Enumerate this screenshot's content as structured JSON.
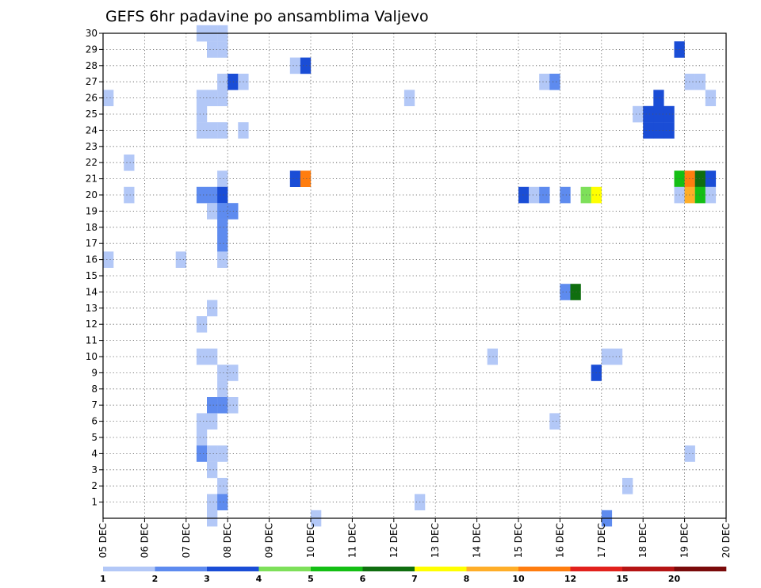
{
  "chart_data": {
    "type": "heatmap",
    "title": "GEFS 6hr padavine po ansamblima Valjevo",
    "xlabel": "",
    "ylabel": "",
    "x_ticks": [
      "05 DEC",
      "06 DEC",
      "07 DEC",
      "08 DEC",
      "09 DEC",
      "10 DEC",
      "11 DEC",
      "12 DEC",
      "13 DEC",
      "14 DEC",
      "15 DEC",
      "16 DEC",
      "17 DEC",
      "18 DEC",
      "19 DEC",
      "20 DEC"
    ],
    "y_ticks": [
      "1",
      "2",
      "3",
      "4",
      "5",
      "6",
      "7",
      "8",
      "9",
      "10",
      "11",
      "12",
      "13",
      "14",
      "15",
      "16",
      "17",
      "18",
      "19",
      "20",
      "21",
      "22",
      "23",
      "24",
      "25",
      "26",
      "27",
      "28",
      "29",
      "30"
    ],
    "x_range_steps": [
      0,
      60
    ],
    "y_range": [
      0,
      30
    ],
    "grid": true,
    "colorbar": {
      "labels": [
        "1",
        "2",
        "3",
        "4",
        "5",
        "6",
        "7",
        "8",
        "10",
        "12",
        "15",
        "20"
      ],
      "colors": [
        "#b3c8f7",
        "#5e8bef",
        "#1a4dd6",
        "#7ee05a",
        "#14bf14",
        "#0f6e0f",
        "#ffff00",
        "#ffae28",
        "#ff7d0f",
        "#e2211c",
        "#b51414",
        "#7a0a0a"
      ]
    },
    "cells": [
      [
        9,
        30,
        1
      ],
      [
        10,
        30,
        1
      ],
      [
        11,
        30,
        1
      ],
      [
        10,
        29,
        1
      ],
      [
        11,
        29,
        1
      ],
      [
        55,
        29,
        3
      ],
      [
        18,
        28,
        1
      ],
      [
        19,
        28,
        3
      ],
      [
        11,
        27,
        1
      ],
      [
        12,
        27,
        3
      ],
      [
        13,
        27,
        1
      ],
      [
        42,
        27,
        1
      ],
      [
        43,
        27,
        2
      ],
      [
        56,
        27,
        1
      ],
      [
        57,
        27,
        1
      ],
      [
        0,
        26,
        1
      ],
      [
        9,
        26,
        1
      ],
      [
        10,
        26,
        1
      ],
      [
        11,
        26,
        1
      ],
      [
        29,
        26,
        1
      ],
      [
        53,
        26,
        3
      ],
      [
        58,
        26,
        1
      ],
      [
        9,
        25,
        1
      ],
      [
        51,
        25,
        1
      ],
      [
        52,
        25,
        3
      ],
      [
        53,
        25,
        3
      ],
      [
        54,
        25,
        3
      ],
      [
        9,
        24,
        1
      ],
      [
        10,
        24,
        1
      ],
      [
        11,
        24,
        1
      ],
      [
        13,
        24,
        1
      ],
      [
        52,
        24,
        3
      ],
      [
        53,
        24,
        3
      ],
      [
        54,
        24,
        3
      ],
      [
        2,
        22,
        1
      ],
      [
        11,
        21,
        1
      ],
      [
        18,
        21,
        3
      ],
      [
        19,
        21,
        10
      ],
      [
        55,
        21,
        5
      ],
      [
        56,
        21,
        10
      ],
      [
        57,
        21,
        6
      ],
      [
        58,
        21,
        3
      ],
      [
        2,
        20,
        1
      ],
      [
        9,
        20,
        2
      ],
      [
        10,
        20,
        2
      ],
      [
        11,
        20,
        3
      ],
      [
        40,
        20,
        3
      ],
      [
        41,
        20,
        1
      ],
      [
        42,
        20,
        2
      ],
      [
        44,
        20,
        2
      ],
      [
        46,
        20,
        4
      ],
      [
        47,
        20,
        7
      ],
      [
        55,
        20,
        1
      ],
      [
        56,
        20,
        8
      ],
      [
        57,
        20,
        5
      ],
      [
        58,
        20,
        1
      ],
      [
        10,
        19,
        1
      ],
      [
        11,
        19,
        2
      ],
      [
        12,
        19,
        2
      ],
      [
        11,
        18,
        2
      ],
      [
        11,
        17,
        2
      ],
      [
        0,
        16,
        1
      ],
      [
        7,
        16,
        1
      ],
      [
        11,
        16,
        1
      ],
      [
        44,
        14,
        2
      ],
      [
        45,
        14,
        6
      ],
      [
        10,
        13,
        1
      ],
      [
        9,
        12,
        1
      ],
      [
        9,
        10,
        1
      ],
      [
        10,
        10,
        1
      ],
      [
        37,
        10,
        1
      ],
      [
        48,
        10,
        1
      ],
      [
        49,
        10,
        1
      ],
      [
        11,
        9,
        1
      ],
      [
        12,
        9,
        1
      ],
      [
        47,
        9,
        3
      ],
      [
        11,
        8,
        1
      ],
      [
        10,
        7,
        2
      ],
      [
        11,
        7,
        2
      ],
      [
        12,
        7,
        1
      ],
      [
        9,
        6,
        1
      ],
      [
        10,
        6,
        1
      ],
      [
        43,
        6,
        1
      ],
      [
        9,
        5,
        1
      ],
      [
        9,
        4,
        2
      ],
      [
        10,
        4,
        1
      ],
      [
        11,
        4,
        1
      ],
      [
        56,
        4,
        1
      ],
      [
        10,
        3,
        1
      ],
      [
        11,
        2,
        1
      ],
      [
        50,
        2,
        1
      ],
      [
        10,
        1,
        1
      ],
      [
        11,
        1,
        2
      ],
      [
        30,
        1,
        1
      ],
      [
        10,
        0,
        1
      ],
      [
        20,
        0,
        1
      ],
      [
        48,
        0,
        2
      ]
    ]
  }
}
